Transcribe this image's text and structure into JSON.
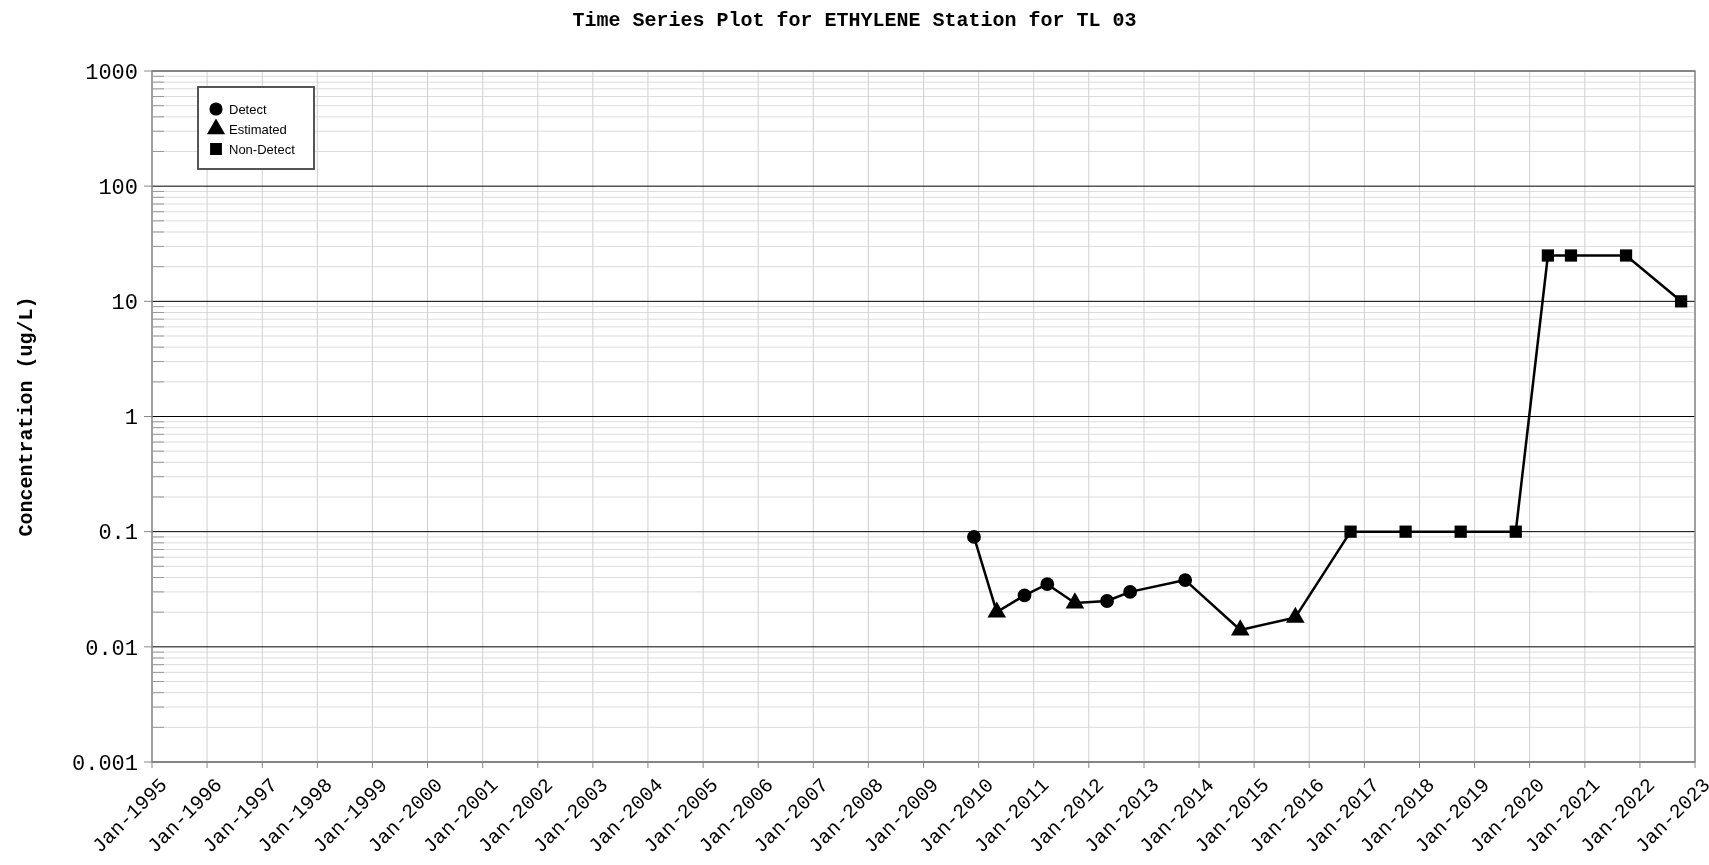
{
  "chart_data": {
    "type": "line",
    "title": "Time Series Plot for ETHYLENE Station for TL 03",
    "ylabel": "Concentration (ug/L)",
    "log": "y",
    "grid": true,
    "legend": "top left",
    "xlim": [
      "1995-01",
      "2023-01"
    ],
    "xticks": [
      {
        "value": "1995-01",
        "label": "Jan-1995"
      },
      {
        "value": "1996-01",
        "label": "Jan-1996"
      },
      {
        "value": "1997-01",
        "label": "Jan-1997"
      },
      {
        "value": "1998-01",
        "label": "Jan-1998"
      },
      {
        "value": "1999-01",
        "label": "Jan-1999"
      },
      {
        "value": "2000-01",
        "label": "Jan-2000"
      },
      {
        "value": "2001-01",
        "label": "Jan-2001"
      },
      {
        "value": "2002-01",
        "label": "Jan-2002"
      },
      {
        "value": "2003-01",
        "label": "Jan-2003"
      },
      {
        "value": "2004-01",
        "label": "Jan-2004"
      },
      {
        "value": "2005-01",
        "label": "Jan-2005"
      },
      {
        "value": "2006-01",
        "label": "Jan-2006"
      },
      {
        "value": "2007-01",
        "label": "Jan-2007"
      },
      {
        "value": "2008-01",
        "label": "Jan-2008"
      },
      {
        "value": "2009-01",
        "label": "Jan-2009"
      },
      {
        "value": "2010-01",
        "label": "Jan-2010"
      },
      {
        "value": "2011-01",
        "label": "Jan-2011"
      },
      {
        "value": "2012-01",
        "label": "Jan-2012"
      },
      {
        "value": "2013-01",
        "label": "Jan-2013"
      },
      {
        "value": "2014-01",
        "label": "Jan-2014"
      },
      {
        "value": "2015-01",
        "label": "Jan-2015"
      },
      {
        "value": "2016-01",
        "label": "Jan-2016"
      },
      {
        "value": "2017-01",
        "label": "Jan-2017"
      },
      {
        "value": "2018-01",
        "label": "Jan-2018"
      },
      {
        "value": "2019-01",
        "label": "Jan-2019"
      },
      {
        "value": "2020-01",
        "label": "Jan-2020"
      },
      {
        "value": "2021-01",
        "label": "Jan-2021"
      },
      {
        "value": "2022-01",
        "label": "Jan-2022"
      },
      {
        "value": "2023-01",
        "label": "Jan-2023"
      }
    ],
    "ylim": [
      0.001,
      1000
    ],
    "yticks": [
      {
        "value": 0.001,
        "label": "0.001"
      },
      {
        "value": 0.01,
        "label": "0.01"
      },
      {
        "value": 0.1,
        "label": "0.1"
      },
      1,
      10,
      100,
      1000
    ],
    "series": [
      {
        "color": "#000000",
        "marker": "none",
        "line_style": "solid",
        "x": [
          "2009-12",
          "2010-05",
          "2010-11",
          "2011-04",
          "2011-10",
          "2012-05",
          "2012-10",
          "2013-10",
          "2014-10",
          "2015-10",
          "2016-10",
          "2017-10",
          "2018-10",
          "2019-10",
          "2020-05",
          "2020-10",
          "2021-10",
          "2022-10"
        ],
        "values": [
          0.09,
          0.02,
          0.028,
          0.035,
          0.024,
          0.025,
          0.03,
          0.038,
          0.014,
          0.018,
          0.1,
          0.1,
          0.1,
          0.1,
          25,
          25,
          25,
          10
        ]
      },
      {
        "type": "scatter",
        "name": "Detect",
        "color": "#000000",
        "marker": "circle",
        "x": [
          "2009-12",
          "2010-11",
          "2011-04",
          "2012-05",
          "2012-10",
          "2013-10"
        ],
        "values": [
          0.09,
          0.028,
          0.035,
          0.025,
          0.03,
          0.038
        ]
      },
      {
        "type": "scatter",
        "name": "Estimated",
        "color": "#000000",
        "marker": "triangle",
        "x": [
          "2010-05",
          "2011-10",
          "2014-10",
          "2015-10"
        ],
        "values": [
          0.02,
          0.024,
          0.014,
          0.018
        ]
      },
      {
        "type": "scatter",
        "name": "Non-Detect",
        "color": "#000000",
        "marker": "square",
        "x": [
          "2016-10",
          "2017-10",
          "2018-10",
          "2019-10",
          "2020-05",
          "2020-10",
          "2021-10",
          "2022-10"
        ],
        "values": [
          0.1,
          0.1,
          0.1,
          0.1,
          25,
          25,
          25,
          10
        ]
      }
    ]
  }
}
